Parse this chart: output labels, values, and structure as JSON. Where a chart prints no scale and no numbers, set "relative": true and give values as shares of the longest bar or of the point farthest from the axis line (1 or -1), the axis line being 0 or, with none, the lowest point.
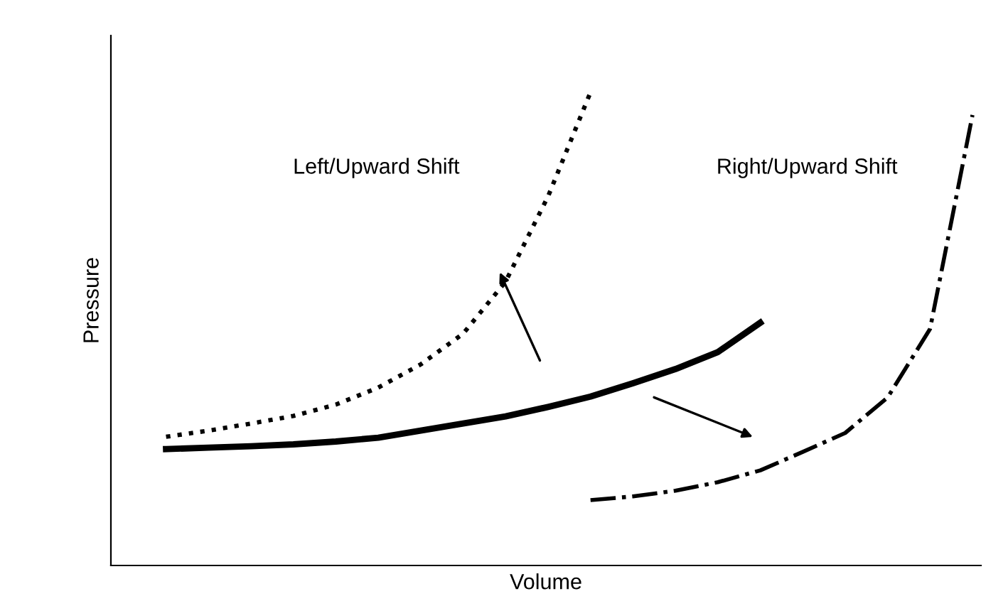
{
  "chart_data": {
    "type": "line",
    "relative": true,
    "xlabel": "Volume",
    "ylabel": "Pressure",
    "legend": false,
    "tick_labels": false,
    "categories": [
      null,
      null,
      null,
      null,
      null,
      null,
      null,
      null,
      null,
      null,
      null,
      null,
      null,
      null,
      null,
      null,
      null,
      null,
      null,
      null
    ],
    "series": [
      {
        "color": "#000000",
        "line_style": "dotted",
        "values": [
          0.272,
          0.285,
          0.3,
          0.316,
          0.34,
          0.376,
          0.425,
          0.49,
          0.6,
          0.78,
          1.0,
          null,
          null,
          null,
          null,
          null,
          null,
          null,
          null,
          null
        ]
      },
      {
        "color": "#000000",
        "line_style": "solid",
        "values": [
          0.246,
          0.249,
          0.252,
          0.256,
          0.262,
          0.27,
          0.285,
          0.3,
          0.315,
          0.335,
          0.357,
          0.385,
          0.415,
          0.451,
          0.513,
          null,
          null,
          null,
          null,
          null
        ]
      },
      {
        "color": "#000000",
        "line_style": "dashdot",
        "values": [
          null,
          null,
          null,
          null,
          null,
          null,
          null,
          null,
          null,
          null,
          0.138,
          0.146,
          0.158,
          0.176,
          0.201,
          0.24,
          0.28,
          0.355,
          0.5,
          0.952
        ]
      }
    ],
    "annotations": [
      "Left/Upward Shift",
      "Right/Upward Shift"
    ]
  }
}
